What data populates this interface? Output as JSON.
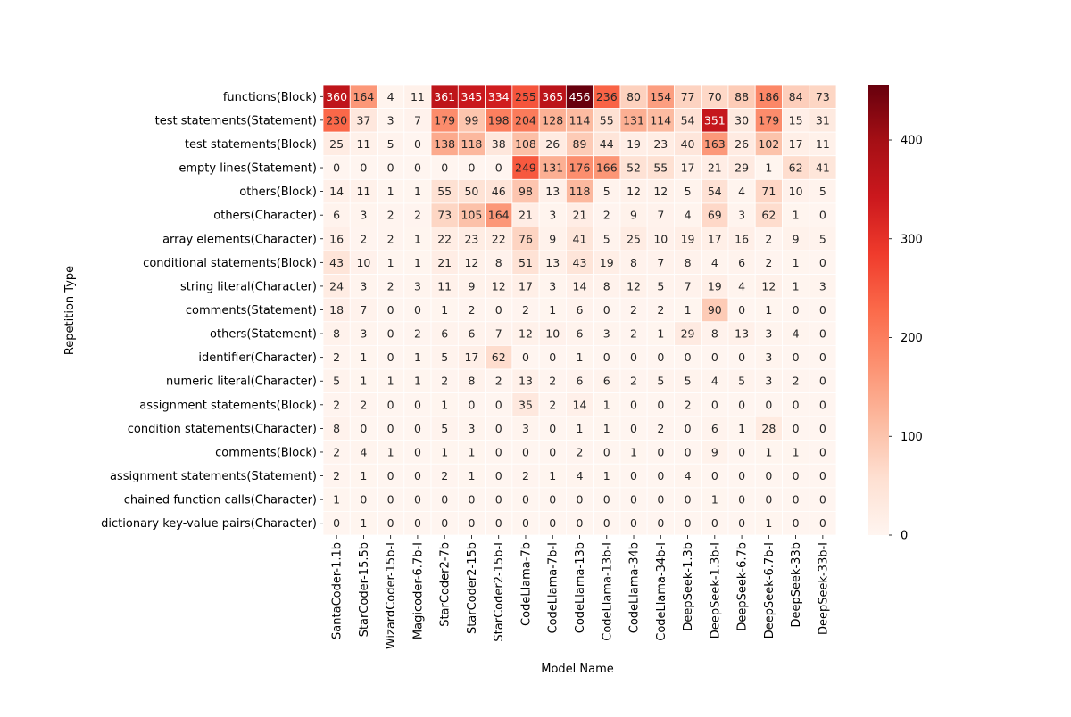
{
  "chart_data": {
    "type": "heatmap",
    "title": "",
    "xlabel": "Model Name",
    "ylabel": "Repetition Type",
    "colormap": "Reds",
    "colorbar": {
      "min": 0,
      "max": 456,
      "ticks": [
        0,
        100,
        200,
        300,
        400
      ]
    },
    "columns": [
      "SantaCoder-1.1b",
      "StarCoder-15.5b",
      "WizardCoder-15b-I",
      "Magicoder-6.7b-I",
      "StarCoder2-7b",
      "StarCoder2-15b",
      "StarCoder2-15b-I",
      "CodeLlama-7b",
      "CodeLlama-7b-I",
      "CodeLlama-13b",
      "CodeLlama-13b-I",
      "CodeLlama-34b",
      "CodeLlama-34b-I",
      "DeepSeek-1.3b",
      "DeepSeek-1.3b-I",
      "DeepSeek-6.7b",
      "DeepSeek-6.7b-I",
      "DeepSeek-33b",
      "DeepSeek-33b-I"
    ],
    "rows": [
      "functions(Block)",
      "test statements(Statement)",
      "test statements(Block)",
      "empty lines(Statement)",
      "others(Block)",
      "others(Character)",
      "array elements(Character)",
      "conditional statements(Block)",
      "string literal(Character)",
      "comments(Statement)",
      "others(Statement)",
      "identifier(Character)",
      "numeric literal(Character)",
      "assignment statements(Block)",
      "condition statements(Character)",
      "comments(Block)",
      "assignment statements(Statement)",
      "chained function calls(Character)",
      "dictionary key-value pairs(Character)"
    ],
    "values": [
      [
        360,
        164,
        4,
        11,
        361,
        345,
        334,
        255,
        365,
        456,
        236,
        80,
        154,
        77,
        70,
        88,
        186,
        84,
        73
      ],
      [
        230,
        37,
        3,
        7,
        179,
        99,
        198,
        204,
        128,
        114,
        55,
        131,
        114,
        54,
        351,
        30,
        179,
        15,
        31
      ],
      [
        25,
        11,
        5,
        0,
        138,
        118,
        38,
        108,
        26,
        89,
        44,
        19,
        23,
        40,
        163,
        26,
        102,
        17,
        11
      ],
      [
        0,
        0,
        0,
        0,
        0,
        0,
        0,
        249,
        131,
        176,
        166,
        52,
        55,
        17,
        21,
        29,
        1,
        62,
        41
      ],
      [
        14,
        11,
        1,
        1,
        55,
        50,
        46,
        98,
        13,
        118,
        5,
        12,
        12,
        5,
        54,
        4,
        71,
        10,
        5
      ],
      [
        6,
        3,
        2,
        2,
        73,
        105,
        164,
        21,
        3,
        21,
        2,
        9,
        7,
        4,
        69,
        3,
        62,
        1,
        0
      ],
      [
        16,
        2,
        2,
        1,
        22,
        23,
        22,
        76,
        9,
        41,
        5,
        25,
        10,
        19,
        17,
        16,
        2,
        9,
        5
      ],
      [
        43,
        10,
        1,
        1,
        21,
        12,
        8,
        51,
        13,
        43,
        19,
        8,
        7,
        8,
        4,
        6,
        2,
        1,
        0
      ],
      [
        24,
        3,
        2,
        3,
        11,
        9,
        12,
        17,
        3,
        14,
        8,
        12,
        5,
        7,
        19,
        4,
        12,
        1,
        3
      ],
      [
        18,
        7,
        0,
        0,
        1,
        2,
        0,
        2,
        1,
        6,
        0,
        2,
        2,
        1,
        90,
        0,
        1,
        0,
        0
      ],
      [
        8,
        3,
        0,
        2,
        6,
        6,
        7,
        12,
        10,
        6,
        3,
        2,
        1,
        29,
        8,
        13,
        3,
        4,
        0
      ],
      [
        2,
        1,
        0,
        1,
        5,
        17,
        62,
        0,
        0,
        1,
        0,
        0,
        0,
        0,
        0,
        0,
        3,
        0,
        0
      ],
      [
        5,
        1,
        1,
        1,
        2,
        8,
        2,
        13,
        2,
        6,
        6,
        2,
        5,
        5,
        4,
        5,
        3,
        2,
        0
      ],
      [
        2,
        2,
        0,
        0,
        1,
        0,
        0,
        35,
        2,
        14,
        1,
        0,
        0,
        2,
        0,
        0,
        0,
        0,
        0
      ],
      [
        8,
        0,
        0,
        0,
        5,
        3,
        0,
        3,
        0,
        1,
        1,
        0,
        2,
        0,
        6,
        1,
        28,
        0,
        0
      ],
      [
        2,
        4,
        1,
        0,
        1,
        1,
        0,
        0,
        0,
        2,
        0,
        1,
        0,
        0,
        9,
        0,
        1,
        1,
        0
      ],
      [
        2,
        1,
        0,
        0,
        2,
        1,
        0,
        2,
        1,
        4,
        1,
        0,
        0,
        4,
        0,
        0,
        0,
        0,
        0
      ],
      [
        1,
        0,
        0,
        0,
        0,
        0,
        0,
        0,
        0,
        0,
        0,
        0,
        0,
        0,
        1,
        0,
        0,
        0,
        0
      ],
      [
        0,
        1,
        0,
        0,
        0,
        0,
        0,
        0,
        0,
        0,
        0,
        0,
        0,
        0,
        0,
        0,
        1,
        0,
        0
      ]
    ]
  }
}
